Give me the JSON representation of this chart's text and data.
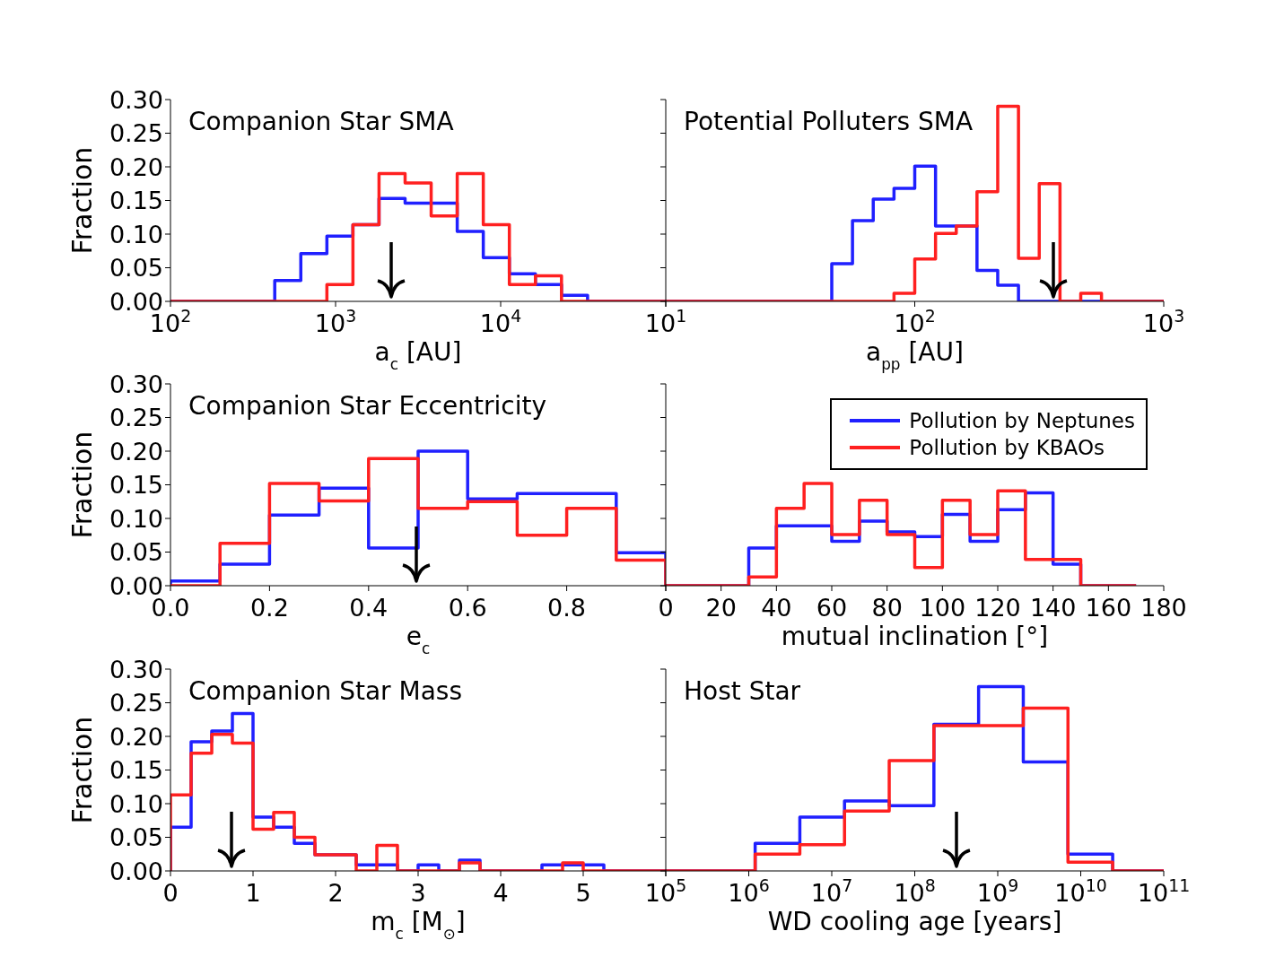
{
  "chart_data": [
    {
      "type": "histogram",
      "title": "Companion Star SMA",
      "xlabel": "a$_{c}$ [AU]",
      "ylabel": "Fraction",
      "log": "x",
      "bins": [
        100,
        143.8,
        206.9,
        297.6,
        428.1,
        615.8,
        885.9,
        1274,
        1833,
        2637,
        3793,
        5456,
        7848,
        11290,
        16240,
        23360,
        33600,
        48330,
        69520,
        100000
      ],
      "series": [
        {
          "color": "#2020ff",
          "values": [
            0,
            0,
            0,
            0,
            0.031,
            0.071,
            0.097,
            0.114,
            0.153,
            0.146,
            0.146,
            0.104,
            0.065,
            0.041,
            0.025,
            0.009,
            0,
            0,
            0
          ]
        },
        {
          "color": "#ff2020",
          "values": [
            0,
            0,
            0,
            0,
            0,
            0,
            0.025,
            0.114,
            0.19,
            0.176,
            0.127,
            0.19,
            0.114,
            0.025,
            0.038,
            0,
            0,
            0,
            0
          ]
        }
      ],
      "xlim": [
        100,
        100000
      ],
      "xticks": [
        {
          "value": 100,
          "label": "10$^{2}$"
        },
        {
          "value": 1000,
          "label": "10$^{3}$"
        },
        {
          "value": 10000,
          "label": "10$^{4}$"
        },
        {
          "value": 100000,
          "label": null
        }
      ],
      "ylim": [
        0,
        0.3
      ],
      "yticks": [
        {
          "value": 0,
          "label": "0.00"
        },
        {
          "value": 0.05,
          "label": "0.05"
        },
        {
          "value": 0.1,
          "label": "0.10"
        },
        {
          "value": 0.15,
          "label": "0.15"
        },
        {
          "value": 0.2,
          "label": "0.20"
        },
        {
          "value": 0.25,
          "label": "0.25"
        },
        {
          "value": 0.3,
          "label": "0.30"
        }
      ]
    },
    {
      "type": "histogram",
      "title": "Potential Polluters SMA",
      "xlabel": "a$_{pp}$ [AU]",
      "log": "x",
      "tick_labels": "x",
      "bins": [
        10,
        12.12,
        14.68,
        17.78,
        21.54,
        26.1,
        31.62,
        38.31,
        46.42,
        56.23,
        68.13,
        82.54,
        100,
        121.2,
        146.8,
        177.8,
        215.4,
        261,
        316.2,
        383.1,
        464.2,
        562.3,
        681.3,
        825.4,
        1000
      ],
      "series": [
        {
          "color": "#2020ff",
          "values": [
            0,
            0,
            0,
            0,
            0,
            0,
            0,
            0,
            0.056,
            0.12,
            0.152,
            0.168,
            0.201,
            0.112,
            0.112,
            0.046,
            0.024,
            0,
            0,
            0,
            0,
            0,
            0,
            0
          ]
        },
        {
          "color": "#ff2020",
          "values": [
            0,
            0,
            0,
            0,
            0,
            0,
            0,
            0,
            0,
            0,
            0,
            0.012,
            0.063,
            0.101,
            0.112,
            0.163,
            0.29,
            0.064,
            0.175,
            0,
            0.012,
            0,
            0,
            0
          ]
        }
      ],
      "xlim": [
        10,
        1000
      ],
      "xticks": [
        {
          "value": 10,
          "label": "10$^{1}$"
        },
        {
          "value": 100,
          "label": "10$^{2}$"
        },
        {
          "value": 1000,
          "label": "10$^{3}$"
        }
      ],
      "ylim": [
        0,
        0.3
      ],
      "yticks": [
        {
          "value": 0,
          "label": null
        },
        {
          "value": 0.05,
          "label": null
        },
        {
          "value": 0.1,
          "label": null
        },
        {
          "value": 0.15,
          "label": null
        },
        {
          "value": 0.2,
          "label": null
        },
        {
          "value": 0.25,
          "label": null
        },
        {
          "value": 0.3,
          "label": null
        }
      ]
    },
    {
      "type": "histogram",
      "title": "Companion Star Eccentricity",
      "xlabel": "e$_{c}$",
      "ylabel": "Fraction",
      "bins": [
        0,
        0.1,
        0.2,
        0.3,
        0.4,
        0.5,
        0.6,
        0.7,
        0.8,
        0.9,
        1
      ],
      "series": [
        {
          "color": "#2020ff",
          "values": [
            0.007,
            0.032,
            0.105,
            0.145,
            0.056,
            0.2,
            0.129,
            0.137,
            0.137,
            0.049
          ]
        },
        {
          "color": "#ff2020",
          "values": [
            0,
            0.063,
            0.152,
            0.126,
            0.189,
            0.115,
            0.125,
            0.075,
            0.115,
            0.038
          ]
        }
      ],
      "xlim": [
        0,
        1
      ],
      "xticks": [
        {
          "value": 0,
          "label": "0.0"
        },
        0.2,
        0.4,
        0.6,
        0.8,
        {
          "value": 1,
          "label": null
        }
      ],
      "ylim": [
        0,
        0.3
      ],
      "yticks": [
        {
          "value": 0,
          "label": "0.00"
        },
        {
          "value": 0.05,
          "label": "0.05"
        },
        {
          "value": 0.1,
          "label": "0.10"
        },
        {
          "value": 0.15,
          "label": "0.15"
        },
        {
          "value": 0.2,
          "label": "0.20"
        },
        {
          "value": 0.25,
          "label": "0.25"
        },
        {
          "value": 0.3,
          "label": "0.30"
        }
      ]
    },
    {
      "type": "histogram",
      "xlabel": "mutual inclination [°]",
      "tick_labels": "x",
      "legend": "top right",
      "bins": [
        0,
        10,
        20,
        30,
        40,
        50,
        60,
        70,
        80,
        90,
        100,
        110,
        120,
        130,
        140,
        150,
        160,
        170
      ],
      "series": [
        {
          "name": "Pollution by Neptunes",
          "color": "#2020ff",
          "values": [
            0,
            0,
            0,
            0.056,
            0.089,
            0.089,
            0.066,
            0.096,
            0.08,
            0.073,
            0.106,
            0.066,
            0.113,
            0.138,
            0.032,
            0,
            0
          ]
        },
        {
          "name": "Pollution by KBAOs",
          "color": "#ff2020",
          "values": [
            0,
            0,
            0,
            0.013,
            0.115,
            0.152,
            0.076,
            0.127,
            0.076,
            0.027,
            0.127,
            0.076,
            0.141,
            0.039,
            0.039,
            0,
            0
          ]
        }
      ],
      "xlim": [
        0,
        180
      ],
      "xticks": [
        0,
        20,
        40,
        60,
        80,
        100,
        120,
        140,
        160,
        180
      ],
      "ylim": [
        0,
        0.3
      ],
      "yticks": [
        {
          "value": 0,
          "label": null
        },
        {
          "value": 0.05,
          "label": null
        },
        {
          "value": 0.1,
          "label": null
        },
        {
          "value": 0.15,
          "label": null
        },
        {
          "value": 0.2,
          "label": null
        },
        {
          "value": 0.25,
          "label": null
        },
        {
          "value": 0.3,
          "label": null
        }
      ]
    },
    {
      "type": "histogram",
      "title": "Companion Star Mass",
      "xlabel": "m$_{c}$ [M$_{⊙}$]",
      "ylabel": "Fraction",
      "bins": [
        0,
        0.25,
        0.5,
        0.75,
        1,
        1.25,
        1.5,
        1.75,
        2,
        2.25,
        2.5,
        2.75,
        3,
        3.25,
        3.5,
        3.75,
        4,
        4.25,
        4.5,
        4.75,
        5,
        5.25,
        5.5,
        5.75,
        6
      ],
      "series": [
        {
          "color": "#2020ff",
          "values": [
            0.065,
            0.192,
            0.208,
            0.234,
            0.08,
            0.065,
            0.041,
            0.024,
            0.024,
            0.009,
            0.009,
            0,
            0.009,
            0,
            0.016,
            0,
            0,
            0,
            0.009,
            0.009,
            0.009,
            0,
            0,
            0
          ]
        },
        {
          "color": "#ff2020",
          "values": [
            0.113,
            0.175,
            0.203,
            0.19,
            0.062,
            0.087,
            0.05,
            0.024,
            0.024,
            0,
            0.038,
            0,
            0,
            0,
            0.012,
            0,
            0,
            0,
            0,
            0.012,
            0,
            0,
            0,
            0
          ]
        }
      ],
      "xlim": [
        0,
        6
      ],
      "xticks": [
        0,
        1,
        2,
        3,
        4,
        5,
        {
          "value": 6,
          "label": null
        }
      ],
      "ylim": [
        0,
        0.3
      ],
      "yticks": [
        {
          "value": 0,
          "label": "0.00"
        },
        {
          "value": 0.05,
          "label": "0.05"
        },
        {
          "value": 0.1,
          "label": "0.10"
        },
        {
          "value": 0.15,
          "label": "0.15"
        },
        {
          "value": 0.2,
          "label": "0.20"
        },
        {
          "value": 0.25,
          "label": "0.25"
        },
        {
          "value": 0.3,
          "label": "0.30"
        }
      ]
    },
    {
      "type": "histogram",
      "title": "Host Star",
      "xlabel": "WD cooling age [years]",
      "log": "x",
      "tick_labels": "x",
      "bins": [
        100000,
        345500,
        1194000,
        4125000,
        14250000,
        49240000,
        170100000,
        587800000,
        2031000000,
        7017000000,
        24250000000,
        83770000000,
        100000000000
      ],
      "series": [
        {
          "color": "#2020ff",
          "values": [
            0,
            0,
            0.041,
            0.08,
            0.104,
            0.097,
            0.218,
            0.274,
            0.162,
            0.025,
            0,
            0
          ]
        },
        {
          "color": "#ff2020",
          "values": [
            0,
            0,
            0.025,
            0.039,
            0.089,
            0.164,
            0.216,
            0.216,
            0.242,
            0.013,
            0,
            0
          ]
        }
      ],
      "xlim": [
        100000,
        100000000000
      ],
      "xticks": [
        {
          "value": 100000,
          "label": "10$^{5}$"
        },
        {
          "value": 1000000,
          "label": "10$^{6}$"
        },
        {
          "value": 10000000,
          "label": "10$^{7}$"
        },
        {
          "value": 100000000,
          "label": "10$^{8}$"
        },
        {
          "value": 1000000000,
          "label": "10$^{9}$"
        },
        {
          "value": 10000000000,
          "label": "10$^{10}$"
        },
        {
          "value": 100000000000,
          "label": "10$^{11}$"
        }
      ],
      "ylim": [
        0,
        0.3
      ],
      "yticks": [
        {
          "value": 0,
          "label": null
        },
        {
          "value": 0.05,
          "label": null
        },
        {
          "value": 0.1,
          "label": null
        },
        {
          "value": 0.15,
          "label": null
        },
        {
          "value": 0.2,
          "label": null
        },
        {
          "value": 0.25,
          "label": null
        },
        {
          "value": 0.3,
          "label": null
        }
      ]
    }
  ]
}
